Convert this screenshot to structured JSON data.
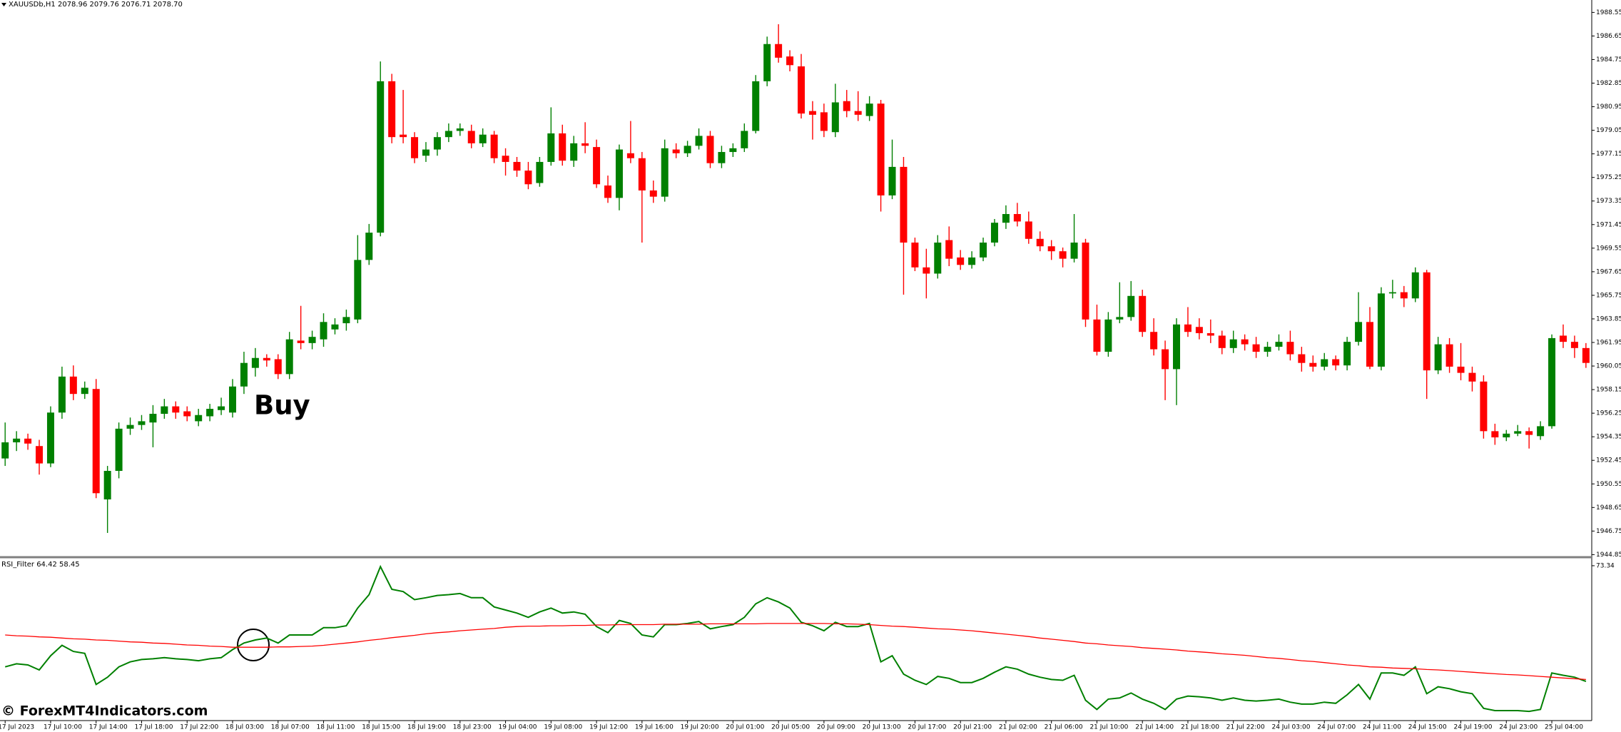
{
  "chart_data": [
    {
      "type": "candlestick",
      "title": "XAUUSDb,H1 2078.96 2079.76 2076.71 2078.70",
      "annotations": [
        {
          "text": "Buy"
        }
      ],
      "up_color": "#008000",
      "down_color": "#ff0000",
      "categories": [
        "17 Jul 2023",
        null,
        null,
        null,
        "17 Jul 10:00",
        null,
        null,
        null,
        "17 Jul 14:00",
        null,
        null,
        null,
        "17 Jul 18:00",
        null,
        null,
        null,
        "17 Jul 22:00",
        null,
        null,
        null,
        "18 Jul 03:00",
        null,
        null,
        null,
        "18 Jul 07:00",
        null,
        null,
        null,
        "18 Jul 11:00",
        null,
        null,
        null,
        "18 Jul 15:00",
        null,
        null,
        null,
        "18 Jul 19:00",
        null,
        null,
        null,
        "18 Jul 23:00",
        null,
        null,
        null,
        "19 Jul 04:00",
        null,
        null,
        null,
        "19 Jul 08:00",
        null,
        null,
        null,
        "19 Jul 12:00",
        null,
        null,
        null,
        "19 Jul 16:00",
        null,
        null,
        null,
        "19 Jul 20:00",
        null,
        null,
        null,
        "20 Jul 01:00",
        null,
        null,
        null,
        "20 Jul 05:00",
        null,
        null,
        null,
        "20 Jul 09:00",
        null,
        null,
        null,
        "20 Jul 13:00",
        null,
        null,
        null,
        "20 Jul 17:00",
        null,
        null,
        null,
        "20 Jul 21:00",
        null,
        null,
        null,
        "21 Jul 02:00",
        null,
        null,
        null,
        "21 Jul 06:00",
        null,
        null,
        null,
        "21 Jul 10:00",
        null,
        null,
        null,
        "21 Jul 14:00",
        null,
        null,
        null,
        "21 Jul 18:00",
        null,
        null,
        null,
        "21 Jul 22:00",
        null,
        null,
        null,
        "24 Jul 03:00",
        null,
        null,
        null,
        "24 Jul 07:00",
        null,
        null,
        null,
        "24 Jul 11:00",
        null,
        null,
        null,
        "24 Jul 15:00",
        null,
        null,
        null,
        "24 Jul 19:00",
        null,
        null,
        null,
        "24 Jul 23:00",
        null,
        null,
        null,
        "25 Jul 04:00",
        null,
        null,
        null
      ],
      "open": [
        1952.6,
        1953.9,
        1954.2,
        1953.6,
        1952.2,
        1956.3,
        1959.2,
        1957.8,
        1958.2,
        1949.3,
        1951.6,
        1955.0,
        1955.3,
        1955.5,
        1956.2,
        1956.8,
        1956.4,
        1955.6,
        1956.0,
        1956.5,
        1956.3,
        1958.4,
        1959.9,
        1960.7,
        1960.6,
        1959.4,
        1962.1,
        1961.9,
        1962.2,
        1963.0,
        1963.5,
        1963.8,
        1968.6,
        1970.8,
        1983.0,
        1978.7,
        1978.5,
        1977.0,
        1977.5,
        1978.5,
        1979.0,
        1979.0,
        1978.0,
        1978.7,
        1977.0,
        1976.5,
        1975.8,
        1974.8,
        1976.5,
        1978.8,
        1976.6,
        1978.0,
        1977.7,
        1974.6,
        1973.6,
        1977.2,
        1976.8,
        1974.2,
        1973.7,
        1977.5,
        1977.2,
        1977.8,
        1978.6,
        1976.4,
        1977.3,
        1977.6,
        1979.0,
        1983.0,
        1986.0,
        1985.0,
        1984.2,
        1980.6,
        1980.5,
        1978.9,
        1981.4,
        1980.6,
        1980.2,
        1981.2,
        1973.8,
        1976.1,
        1970.0,
        1968.0,
        1967.5,
        1970.2,
        1968.8,
        1968.2,
        1968.8,
        1970.0,
        1971.6,
        1972.3,
        1971.7,
        1970.3,
        1969.7,
        1969.3,
        1968.7,
        1970.0,
        1963.8,
        1961.2,
        1963.8,
        1964.0,
        1965.7,
        1962.8,
        1961.4,
        1959.8,
        1963.4,
        1963.2,
        1962.7,
        1962.5,
        1961.5,
        1962.2,
        1961.8,
        1961.2,
        1961.6,
        1962.0,
        1961.0,
        1960.3,
        1960.0,
        1960.6,
        1960.1,
        1962.0,
        1963.6,
        1960.0,
        1965.9,
        1966.0,
        1965.5,
        1967.6,
        1959.7,
        1961.8,
        1960.0,
        1959.5,
        1958.8,
        1954.8,
        1954.3,
        1954.6,
        1954.8,
        1954.4,
        1955.2,
        1962.5,
        1962.0,
        1961.5
      ],
      "high": [
        1955.5,
        1954.8,
        1954.6,
        1954.1,
        1956.8,
        1960.0,
        1960.1,
        1958.8,
        1959.0,
        1952.0,
        1955.5,
        1955.9,
        1956.1,
        1956.9,
        1957.4,
        1957.2,
        1956.8,
        1956.6,
        1957.0,
        1957.5,
        1959.0,
        1961.2,
        1961.5,
        1961.0,
        1961.0,
        1962.8,
        1964.9,
        1962.9,
        1964.3,
        1963.9,
        1964.6,
        1970.6,
        1971.5,
        1984.6,
        1983.6,
        1982.3,
        1978.9,
        1978.1,
        1978.9,
        1979.6,
        1979.6,
        1979.5,
        1979.2,
        1979.0,
        1977.6,
        1976.9,
        1976.5,
        1976.9,
        1980.9,
        1979.5,
        1978.6,
        1979.7,
        1978.3,
        1975.4,
        1977.9,
        1979.8,
        1977.3,
        1975.0,
        1978.3,
        1978.0,
        1978.2,
        1979.2,
        1979.0,
        1977.8,
        1978.0,
        1979.6,
        1983.5,
        1986.6,
        1987.6,
        1985.5,
        1985.2,
        1981.4,
        1981.2,
        1982.8,
        1982.3,
        1982.2,
        1981.8,
        1981.5,
        1978.3,
        1976.9,
        1970.4,
        1969.5,
        1970.6,
        1971.3,
        1969.4,
        1969.3,
        1970.4,
        1971.9,
        1973.0,
        1973.2,
        1972.5,
        1970.9,
        1970.2,
        1969.6,
        1972.3,
        1970.3,
        1965.0,
        1964.4,
        1966.8,
        1966.9,
        1966.2,
        1963.9,
        1962.1,
        1963.9,
        1964.8,
        1963.9,
        1963.8,
        1962.9,
        1962.9,
        1962.6,
        1962.4,
        1962.0,
        1962.6,
        1962.9,
        1961.6,
        1960.9,
        1961.1,
        1960.9,
        1962.4,
        1966.0,
        1964.8,
        1966.4,
        1967.0,
        1966.5,
        1968.0,
        1967.8,
        1962.4,
        1962.3,
        1961.9,
        1960.0,
        1959.3,
        1955.4,
        1954.9,
        1955.3,
        1955.1,
        1955.6,
        1962.6,
        1963.4,
        1962.5,
        1961.9
      ],
      "low": [
        1952.0,
        1953.2,
        1953.3,
        1951.3,
        1951.9,
        1955.8,
        1957.3,
        1957.4,
        1949.4,
        1946.6,
        1951.0,
        1954.5,
        1954.9,
        1953.5,
        1955.8,
        1955.8,
        1955.6,
        1955.2,
        1955.6,
        1956.1,
        1955.9,
        1957.8,
        1959.2,
        1960.0,
        1959.0,
        1959.0,
        1961.4,
        1961.4,
        1961.6,
        1962.6,
        1962.9,
        1963.5,
        1968.2,
        1970.5,
        1978.0,
        1978.0,
        1976.4,
        1976.5,
        1977.0,
        1978.1,
        1978.6,
        1977.6,
        1977.7,
        1976.4,
        1975.4,
        1975.3,
        1974.3,
        1974.5,
        1976.2,
        1976.2,
        1976.1,
        1977.2,
        1974.4,
        1973.2,
        1972.6,
        1976.4,
        1970.0,
        1973.2,
        1973.3,
        1976.8,
        1976.9,
        1977.5,
        1976.0,
        1976.0,
        1976.9,
        1977.3,
        1978.8,
        1982.6,
        1984.5,
        1983.8,
        1980.0,
        1978.3,
        1978.5,
        1978.5,
        1980.1,
        1979.8,
        1979.8,
        1972.5,
        1973.5,
        1965.8,
        1967.7,
        1965.5,
        1967.1,
        1968.1,
        1967.8,
        1967.9,
        1968.5,
        1969.7,
        1971.1,
        1971.3,
        1969.9,
        1969.3,
        1968.6,
        1968.0,
        1968.4,
        1963.2,
        1960.9,
        1960.8,
        1963.5,
        1963.7,
        1962.4,
        1960.9,
        1957.3,
        1956.9,
        1962.4,
        1962.2,
        1961.9,
        1961.0,
        1961.1,
        1961.3,
        1960.7,
        1960.8,
        1961.3,
        1960.5,
        1959.6,
        1959.6,
        1959.7,
        1959.7,
        1959.7,
        1961.7,
        1959.8,
        1959.7,
        1965.5,
        1964.8,
        1965.2,
        1957.4,
        1959.4,
        1959.5,
        1958.9,
        1958.0,
        1954.2,
        1953.7,
        1954.0,
        1954.4,
        1953.4,
        1954.1,
        1955.0,
        1961.5,
        1960.7,
        1959.9
      ],
      "close": [
        1953.9,
        1954.2,
        1953.8,
        1952.2,
        1956.3,
        1959.2,
        1957.8,
        1958.3,
        1949.8,
        1951.6,
        1955.0,
        1955.3,
        1955.6,
        1956.2,
        1956.8,
        1956.3,
        1956.0,
        1956.1,
        1956.6,
        1956.8,
        1958.4,
        1960.3,
        1960.7,
        1960.5,
        1959.4,
        1962.2,
        1961.9,
        1962.4,
        1963.6,
        1963.4,
        1964.0,
        1968.6,
        1970.8,
        1983.0,
        1978.5,
        1978.5,
        1976.8,
        1977.5,
        1978.5,
        1979.0,
        1979.2,
        1978.0,
        1978.7,
        1976.8,
        1976.5,
        1975.8,
        1974.7,
        1976.5,
        1978.8,
        1976.6,
        1978.0,
        1977.8,
        1974.7,
        1973.6,
        1977.5,
        1976.8,
        1974.2,
        1973.7,
        1977.6,
        1977.2,
        1977.8,
        1978.6,
        1976.4,
        1977.3,
        1977.6,
        1979.0,
        1983.0,
        1986.0,
        1984.9,
        1984.3,
        1980.4,
        1980.3,
        1979.0,
        1981.3,
        1980.6,
        1980.3,
        1981.2,
        1973.8,
        1976.1,
        1970.0,
        1968.0,
        1967.5,
        1970.0,
        1968.7,
        1968.2,
        1968.8,
        1970.0,
        1971.6,
        1972.3,
        1971.7,
        1970.3,
        1969.7,
        1969.3,
        1968.7,
        1970.0,
        1963.8,
        1961.2,
        1963.8,
        1964.0,
        1965.7,
        1962.8,
        1961.4,
        1959.8,
        1963.4,
        1962.8,
        1962.7,
        1962.5,
        1961.5,
        1962.2,
        1961.8,
        1961.2,
        1961.6,
        1962.0,
        1961.0,
        1960.3,
        1960.0,
        1960.6,
        1960.1,
        1962.0,
        1963.6,
        1960.0,
        1965.9,
        1966.0,
        1965.5,
        1967.6,
        1959.7,
        1961.8,
        1960.0,
        1959.5,
        1958.8,
        1954.8,
        1954.3,
        1954.6,
        1954.8,
        1954.5,
        1955.2,
        1962.3,
        1962.0,
        1961.5,
        1960.3
      ],
      "ylim": [
        1944.7,
        1989.55
      ],
      "yticks": [
        1988.55,
        1986.65,
        1984.75,
        1982.85,
        1980.95,
        1979.05,
        1977.15,
        1975.25,
        1973.35,
        1971.45,
        1969.55,
        1967.65,
        1965.75,
        1963.85,
        1961.95,
        1960.05,
        1958.15,
        1956.25,
        1954.35,
        1952.45,
        1950.55,
        1948.65,
        1946.75,
        1944.85
      ]
    },
    {
      "type": "line",
      "title": "RSI_Filter 64.42 58.45",
      "series": [
        {
          "color": "#008000",
          "values": [
            47.0,
            47.8,
            47.5,
            46.2,
            49.9,
            52.6,
            51.0,
            50.5,
            42.4,
            44.3,
            47.0,
            48.3,
            48.9,
            49.1,
            49.4,
            49.1,
            48.9,
            48.6,
            49.1,
            49.4,
            51.5,
            53.2,
            54.0,
            54.5,
            53.2,
            55.3,
            55.3,
            55.3,
            57.2,
            57.2,
            57.7,
            62.3,
            65.8,
            73.1,
            67.2,
            66.6,
            64.5,
            65.0,
            65.6,
            65.8,
            66.1,
            65.0,
            65.0,
            62.6,
            61.8,
            61.0,
            59.9,
            61.3,
            62.3,
            61.0,
            61.3,
            60.7,
            57.5,
            55.9,
            59.1,
            58.3,
            55.3,
            54.8,
            58.0,
            58.0,
            58.3,
            58.8,
            56.9,
            57.5,
            58.0,
            59.9,
            63.4,
            65.0,
            63.9,
            62.3,
            58.6,
            57.7,
            56.4,
            58.6,
            57.5,
            57.5,
            58.3,
            48.3,
            49.9,
            45.1,
            43.5,
            42.4,
            44.5,
            44.0,
            42.9,
            42.9,
            44.0,
            45.6,
            47.0,
            46.4,
            45.1,
            44.3,
            43.7,
            43.5,
            44.8,
            38.3,
            35.9,
            38.6,
            38.9,
            40.2,
            38.6,
            37.5,
            35.9,
            38.6,
            39.4,
            39.2,
            38.9,
            38.3,
            38.9,
            38.3,
            38.1,
            38.3,
            38.6,
            37.8,
            37.3,
            37.3,
            37.8,
            37.5,
            39.7,
            42.4,
            38.6,
            45.4,
            45.4,
            44.8,
            47.0,
            40.0,
            41.8,
            41.3,
            40.5,
            40.0,
            36.2,
            35.6,
            35.6,
            35.6,
            35.4,
            35.9,
            45.4,
            44.8,
            44.3,
            43.2
          ]
        },
        {
          "color": "#ff0000",
          "values": [
            55.3,
            55.1,
            55.0,
            54.8,
            54.7,
            54.5,
            54.3,
            54.2,
            54.0,
            53.9,
            53.7,
            53.5,
            53.4,
            53.2,
            53.1,
            52.9,
            52.7,
            52.6,
            52.4,
            52.3,
            52.1,
            52.1,
            52.1,
            52.1,
            52.2,
            52.2,
            52.3,
            52.4,
            52.6,
            52.9,
            53.2,
            53.5,
            53.9,
            54.2,
            54.6,
            54.9,
            55.2,
            55.6,
            55.9,
            56.1,
            56.4,
            56.6,
            56.8,
            57.0,
            57.3,
            57.5,
            57.6,
            57.6,
            57.7,
            57.7,
            57.8,
            57.8,
            57.9,
            57.9,
            58.0,
            58.0,
            58.0,
            58.0,
            58.1,
            58.1,
            58.1,
            58.1,
            58.2,
            58.2,
            58.2,
            58.2,
            58.2,
            58.3,
            58.3,
            58.3,
            58.3,
            58.3,
            58.3,
            58.2,
            58.2,
            58.1,
            58.0,
            57.8,
            57.6,
            57.5,
            57.3,
            57.1,
            56.9,
            56.8,
            56.6,
            56.4,
            56.1,
            55.8,
            55.5,
            55.2,
            54.9,
            54.5,
            54.2,
            53.9,
            53.6,
            53.2,
            53.0,
            52.7,
            52.5,
            52.3,
            52.0,
            51.8,
            51.6,
            51.4,
            51.1,
            50.9,
            50.7,
            50.4,
            50.2,
            50.0,
            49.7,
            49.4,
            49.2,
            48.9,
            48.6,
            48.4,
            48.1,
            47.8,
            47.5,
            47.3,
            47.0,
            46.9,
            46.7,
            46.6,
            46.5,
            46.3,
            46.2,
            46.0,
            45.8,
            45.6,
            45.4,
            45.2,
            45.0,
            44.9,
            44.7,
            44.5,
            44.3,
            44.1,
            43.9,
            43.7
          ]
        }
      ],
      "ylim": [
        33,
        75
      ],
      "yticks": [
        73.34
      ]
    }
  ],
  "watermark": "© ForexMT4Indicators.com"
}
